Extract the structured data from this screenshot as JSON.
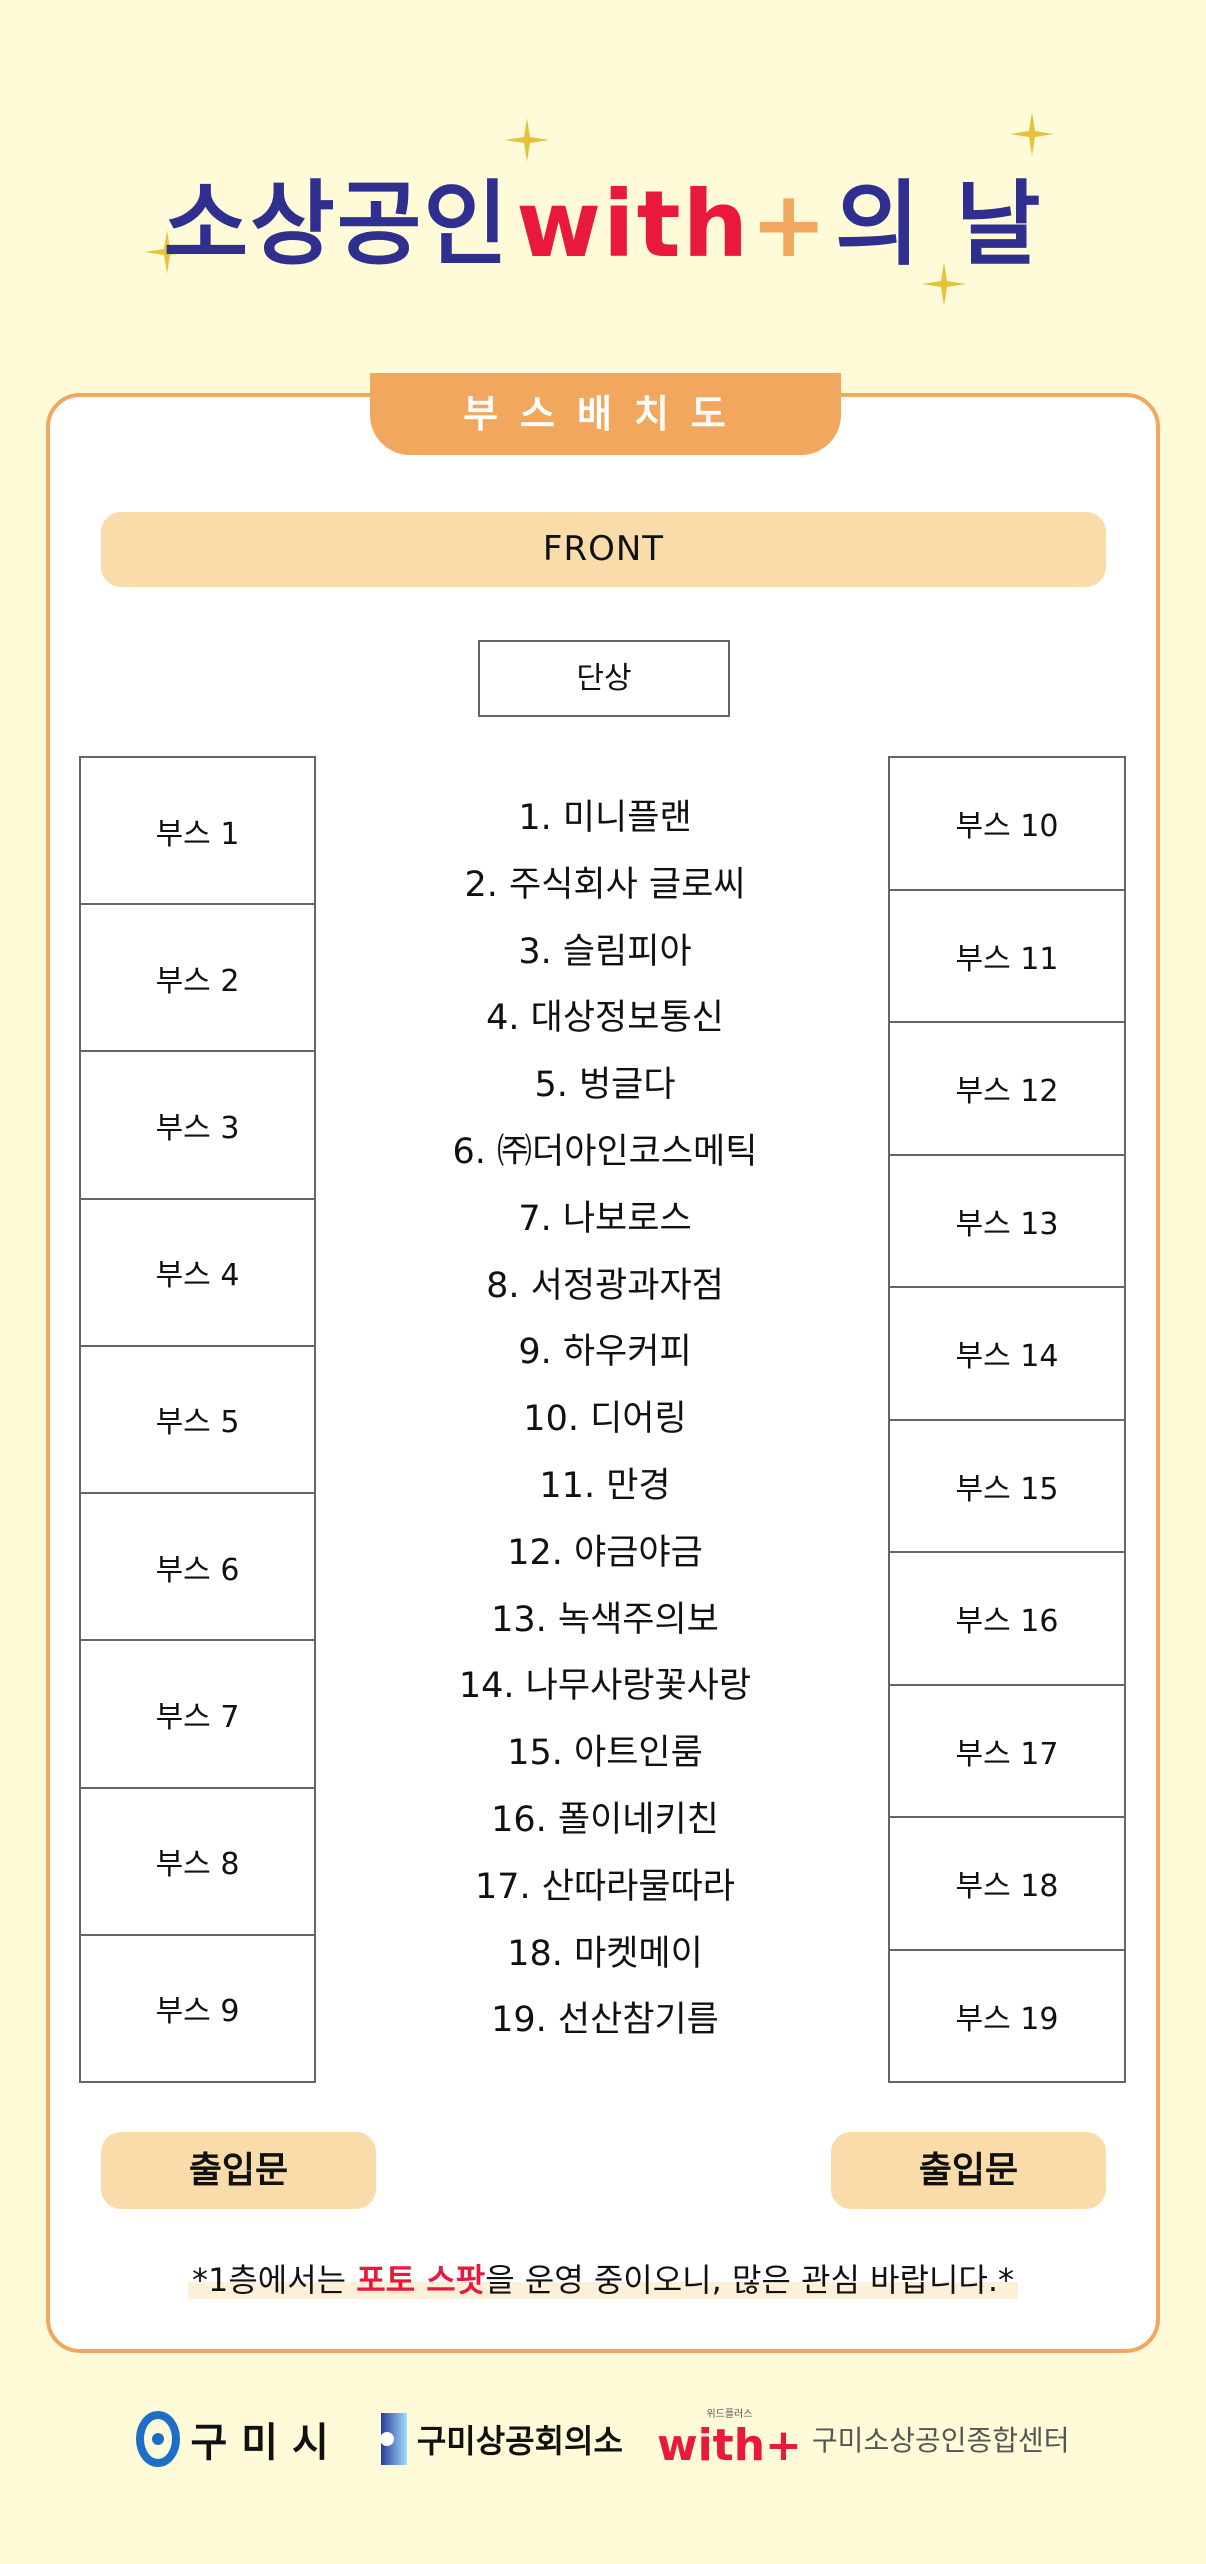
{
  "header": {
    "title_prefix": "소상공인",
    "title_logo": "with",
    "title_logo_plus": "+",
    "title_suffix": "의 날"
  },
  "section_tab": "부스배치도",
  "front_label": "FRONT",
  "stage_label": "단상",
  "left_booths": [
    "부스 1",
    "부스 2",
    "부스 3",
    "부스 4",
    "부스 5",
    "부스 6",
    "부스 7",
    "부스 8",
    "부스 9"
  ],
  "right_booths": [
    "부스 10",
    "부스 11",
    "부스 12",
    "부스 13",
    "부스 14",
    "부스 15",
    "부스 16",
    "부스 17",
    "부스 18",
    "부스 19"
  ],
  "exhibitors": [
    "1. 미니플랜",
    "2. 주식회사 글로씨",
    "3. 슬림피아",
    "4. 대상정보통신",
    "5. 벙글다",
    "6. ㈜더아인코스메틱",
    "7. 나보로스",
    "8. 서정광과자점",
    "9. 하우커피",
    "10. 디어링",
    "11. 만경",
    "12. 야금야금",
    "13. 녹색주의보",
    "14. 나무사랑꽃사랑",
    "15. 아트인룸",
    "16. 폴이네키친",
    "17. 산따라물따라",
    "18. 마켓메이",
    "19. 선산참기름"
  ],
  "entrance_left": "출입문",
  "entrance_right": "출입문",
  "notice": {
    "part1": "*1층에서는 ",
    "highlight": "포토 스팟",
    "part2": "을 운영 중이오니, 많은 관심 바랍니다.*"
  },
  "footer": {
    "gumi_city": "구미시",
    "chamber": "구미상공회의소",
    "with_small": "위드플러스",
    "with_logo": "with+",
    "center": "구미소상공인종합센터"
  },
  "colors": {
    "background": "#fffbd9",
    "accent_orange": "#f2a75e",
    "light_orange": "#fadcab",
    "navy": "#2e2f8f",
    "red": "#e8193c"
  }
}
